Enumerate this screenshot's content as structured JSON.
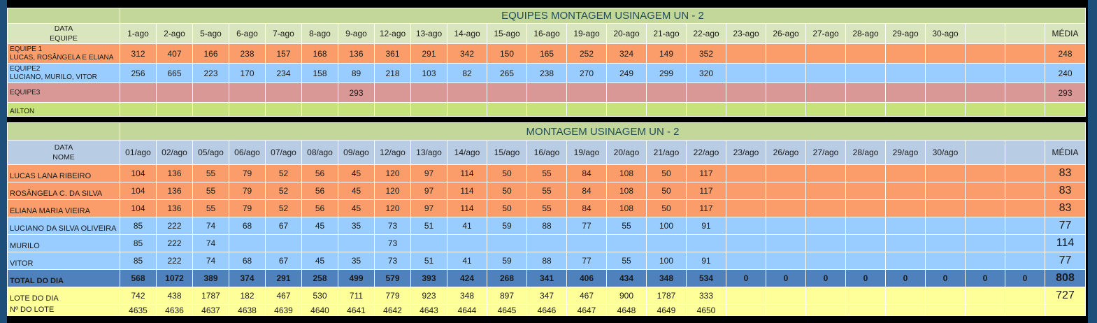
{
  "top": {
    "title": "EQUIPES MONTAGEM USINAGEM UN - 2",
    "header_label_line1": "DATA",
    "header_label_line2": "EQUIPE",
    "dates": [
      "1-ago",
      "2-ago",
      "5-ago",
      "6-ago",
      "7-ago",
      "8-ago",
      "9-ago",
      "12-ago",
      "13-ago",
      "14-ago",
      "15-ago",
      "16-ago",
      "19-ago",
      "20-ago",
      "21-ago",
      "22-ago",
      "23-ago",
      "26-ago",
      "27-ago",
      "28-ago",
      "29-ago",
      "30-ago",
      "",
      ""
    ],
    "avg_header": "MÉDIA",
    "rows": [
      {
        "label1": "EQUIPE 1",
        "label2": "LUCAS, ROSÂNGELA E ELIANA",
        "color": "orange",
        "values": [
          "312",
          "407",
          "166",
          "238",
          "157",
          "168",
          "136",
          "361",
          "291",
          "342",
          "150",
          "165",
          "252",
          "324",
          "149",
          "352",
          "",
          "",
          "",
          "",
          "",
          "",
          "",
          ""
        ],
        "avg": "248"
      },
      {
        "label1": "EQUIPE2",
        "label2": "LUCIANO, MURILO, VITOR",
        "color": "blue",
        "values": [
          "256",
          "665",
          "223",
          "170",
          "234",
          "158",
          "89",
          "218",
          "103",
          "82",
          "265",
          "238",
          "270",
          "249",
          "299",
          "320",
          "",
          "",
          "",
          "",
          "",
          "",
          "",
          ""
        ],
        "avg": "240"
      },
      {
        "label1": "EQUIPE3",
        "label2": "",
        "color": "rose",
        "values": [
          "",
          "",
          "",
          "",
          "",
          "",
          "293",
          "",
          "",
          "",
          "",
          "",
          "",
          "",
          "",
          "",
          "",
          "",
          "",
          "",
          "",
          "",
          "",
          ""
        ],
        "avg": "293"
      },
      {
        "label1": "",
        "label2": "AILTON",
        "color": "green",
        "values": [
          "",
          "",
          "",
          "",
          "",
          "",
          "",
          "",
          "",
          "",
          "",
          "",
          "",
          "",
          "",
          "",
          "",
          "",
          "",
          "",
          "",
          "",
          "",
          ""
        ],
        "avg": ""
      }
    ]
  },
  "bottom": {
    "title": "MONTAGEM USINAGEM UN - 2",
    "header_label_line1": "DATA",
    "header_label_line2": "NOME",
    "dates": [
      "01/ago",
      "02/ago",
      "05/ago",
      "06/ago",
      "07/ago",
      "08/ago",
      "09/ago",
      "12/ago",
      "13/ago",
      "14/ago",
      "15/ago",
      "16/ago",
      "19/ago",
      "20/ago",
      "21/ago",
      "22/ago",
      "23/ago",
      "26/ago",
      "27/ago",
      "28/ago",
      "29/ago",
      "30/ago",
      "",
      ""
    ],
    "avg_header": "MÉDIA",
    "rows": [
      {
        "name": "LUCAS LANA RIBEIRO",
        "color": "orange",
        "values": [
          "104",
          "136",
          "55",
          "79",
          "52",
          "56",
          "45",
          "120",
          "97",
          "114",
          "50",
          "55",
          "84",
          "108",
          "50",
          "117",
          "",
          "",
          "",
          "",
          "",
          "",
          "",
          ""
        ],
        "avg": "83"
      },
      {
        "name": "ROSÂNGELA C. DA SILVA",
        "color": "orange",
        "values": [
          "104",
          "136",
          "55",
          "79",
          "52",
          "56",
          "45",
          "120",
          "97",
          "114",
          "50",
          "55",
          "84",
          "108",
          "50",
          "117",
          "",
          "",
          "",
          "",
          "",
          "",
          "",
          ""
        ],
        "avg": "83"
      },
      {
        "name": "ELIANA MARIA VIEIRA",
        "color": "orange",
        "values": [
          "104",
          "136",
          "55",
          "79",
          "52",
          "56",
          "45",
          "120",
          "97",
          "114",
          "50",
          "55",
          "84",
          "108",
          "50",
          "117",
          "",
          "",
          "",
          "",
          "",
          "",
          "",
          ""
        ],
        "avg": "83"
      },
      {
        "name": "LUCIANO DA SILVA OLIVEIRA",
        "color": "blue",
        "values": [
          "85",
          "222",
          "74",
          "68",
          "67",
          "45",
          "35",
          "73",
          "51",
          "41",
          "59",
          "88",
          "77",
          "55",
          "100",
          "91",
          "",
          "",
          "",
          "",
          "",
          "",
          "",
          ""
        ],
        "avg": "77"
      },
      {
        "name": "MURILO",
        "color": "blue",
        "values": [
          "85",
          "222",
          "74",
          "",
          "",
          "",
          "",
          "73",
          "",
          "",
          "",
          "",
          "",
          "",
          "",
          "",
          "",
          "",
          "",
          "",
          "",
          "",
          "",
          ""
        ],
        "avg": "114"
      },
      {
        "name": "VITOR",
        "color": "blue",
        "values": [
          "85",
          "222",
          "74",
          "68",
          "67",
          "45",
          "35",
          "73",
          "51",
          "41",
          "59",
          "88",
          "77",
          "55",
          "100",
          "91",
          "",
          "",
          "",
          "",
          "",
          "",
          "",
          ""
        ],
        "avg": "77"
      }
    ],
    "total": {
      "label": "TOTAL DO DIA",
      "values": [
        "568",
        "1072",
        "389",
        "374",
        "291",
        "258",
        "499",
        "579",
        "393",
        "424",
        "268",
        "341",
        "406",
        "434",
        "348",
        "534",
        "0",
        "0",
        "0",
        "0",
        "0",
        "0",
        "0",
        "0"
      ],
      "avg": "808"
    },
    "lote": {
      "label": "LOTE DO DIA",
      "values": [
        "742",
        "438",
        "1787",
        "182",
        "467",
        "530",
        "711",
        "779",
        "923",
        "348",
        "897",
        "347",
        "467",
        "900",
        "1787",
        "333",
        "",
        "",
        "",
        "",
        "",
        "",
        "",
        ""
      ],
      "avg": "727"
    },
    "num_lote": {
      "label": "Nº DO LOTE",
      "values": [
        "4635",
        "4636",
        "4637",
        "4638",
        "4639",
        "4640",
        "4641",
        "4642",
        "4643",
        "4644",
        "4645",
        "4646",
        "4647",
        "4648",
        "4649",
        "4650",
        "",
        "",
        "",
        "",
        "",
        "",
        "",
        ""
      ],
      "avg": ""
    }
  },
  "colors": {
    "orange": "#fa9d6a",
    "blue": "#99ccff",
    "rose": "#d99795",
    "green": "#c6e27a",
    "title": "#c4d79b",
    "total": "#4f81bd",
    "yellow": "#ffff99",
    "frame": "#1e4f7a"
  }
}
